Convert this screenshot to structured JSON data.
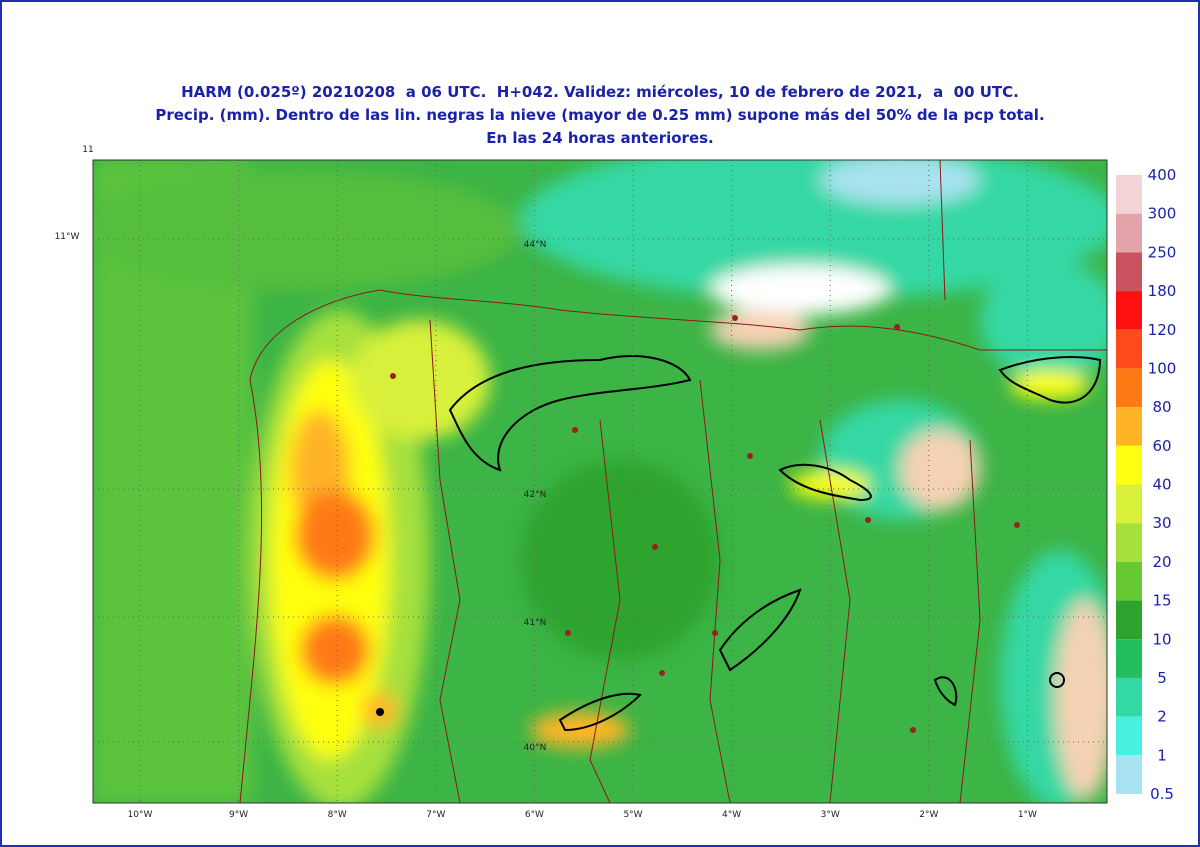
{
  "header": {
    "lines": [
      "HARM (0.025º) 20210208  a 06 UTC.  H+042. Validez: miércoles, 10 de febrero de 2021,  a  00 UTC.",
      "Precip. (mm). Dentro de las lin. negras la nieve (mayor de 0.25 mm) supone más del 50% de la pcp total.",
      "En las 24 horas anteriores."
    ]
  },
  "map": {
    "corner_labels": [
      "11",
      "11°W"
    ],
    "longitude_labels": [
      "10°W",
      "9°W",
      "8°W",
      "7°W",
      "6°W",
      "5°W",
      "4°W",
      "3°W",
      "2°W",
      "1°W"
    ],
    "latitude_labels": [
      "44°N",
      "42°N",
      "41°N",
      "40°N"
    ]
  },
  "legend": {
    "labels": [
      "400",
      "300",
      "250",
      "180",
      "120",
      "100",
      "80",
      "60",
      "40",
      "30",
      "20",
      "15",
      "10",
      "5",
      "2",
      "1",
      "0.5"
    ],
    "colors": [
      "#f2d4d6",
      "#e3a3ab",
      "#c9535f",
      "#ff1010",
      "#ff4a1c",
      "#ff7a14",
      "#ffb426",
      "#ffff10",
      "#d8f03a",
      "#a6e03c",
      "#66c832",
      "#2ea42e",
      "#22be5e",
      "#34d8a4",
      "#48f0e2",
      "#a8e2f0"
    ]
  }
}
